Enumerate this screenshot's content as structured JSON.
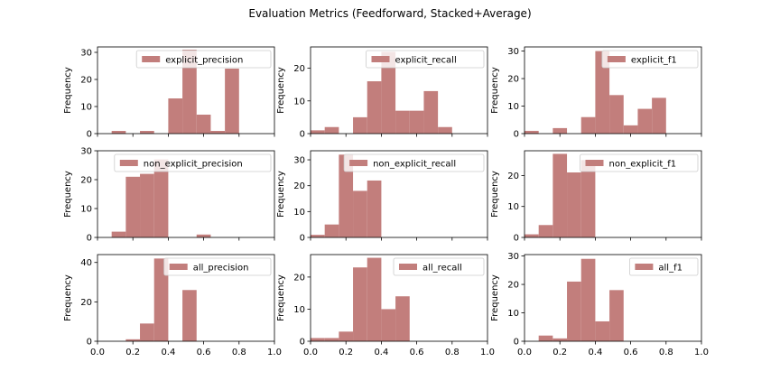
{
  "chart_data": {
    "type": "histogram-grid",
    "title": "Evaluation Metrics (Feedforward, Stacked+Average)",
    "bar_color": "#c27e7c",
    "panels": [
      {
        "legend": "explicit_precision",
        "ylabel": "Frequency",
        "xlim": [
          0,
          1
        ],
        "ylim": [
          0,
          32
        ],
        "yticks": [
          0,
          10,
          20,
          30
        ],
        "xticks": [
          0.0,
          0.2,
          0.4,
          0.6,
          0.8,
          1.0
        ],
        "show_xticklabels": false,
        "bins": [
          {
            "x0": 0.08,
            "x1": 0.16,
            "count": 1
          },
          {
            "x0": 0.16,
            "x1": 0.24,
            "count": 0
          },
          {
            "x0": 0.24,
            "x1": 0.32,
            "count": 1
          },
          {
            "x0": 0.32,
            "x1": 0.4,
            "count": 0
          },
          {
            "x0": 0.4,
            "x1": 0.48,
            "count": 13
          },
          {
            "x0": 0.48,
            "x1": 0.56,
            "count": 31
          },
          {
            "x0": 0.56,
            "x1": 0.64,
            "count": 7
          },
          {
            "x0": 0.64,
            "x1": 0.72,
            "count": 1
          },
          {
            "x0": 0.72,
            "x1": 0.8,
            "count": 24
          }
        ]
      },
      {
        "legend": "explicit_recall",
        "ylabel": "Frequency",
        "xlim": [
          0,
          1
        ],
        "ylim": [
          0,
          26.5
        ],
        "yticks": [
          0,
          10,
          20
        ],
        "xticks": [
          0.0,
          0.2,
          0.4,
          0.6,
          0.8,
          1.0
        ],
        "show_xticklabels": false,
        "bins": [
          {
            "x0": 0.0,
            "x1": 0.08,
            "count": 1
          },
          {
            "x0": 0.08,
            "x1": 0.16,
            "count": 2
          },
          {
            "x0": 0.16,
            "x1": 0.24,
            "count": 0
          },
          {
            "x0": 0.24,
            "x1": 0.32,
            "count": 5
          },
          {
            "x0": 0.32,
            "x1": 0.4,
            "count": 16
          },
          {
            "x0": 0.4,
            "x1": 0.48,
            "count": 25
          },
          {
            "x0": 0.48,
            "x1": 0.56,
            "count": 7
          },
          {
            "x0": 0.56,
            "x1": 0.64,
            "count": 7
          },
          {
            "x0": 0.64,
            "x1": 0.72,
            "count": 13
          },
          {
            "x0": 0.72,
            "x1": 0.8,
            "count": 2
          }
        ]
      },
      {
        "legend": "explicit_f1",
        "ylabel": "Frequency",
        "xlim": [
          0,
          1
        ],
        "ylim": [
          0,
          31.5
        ],
        "yticks": [
          0,
          10,
          20,
          30
        ],
        "xticks": [
          0.0,
          0.2,
          0.4,
          0.6,
          0.8,
          1.0
        ],
        "show_xticklabels": false,
        "bins": [
          {
            "x0": 0.0,
            "x1": 0.08,
            "count": 1
          },
          {
            "x0": 0.08,
            "x1": 0.16,
            "count": 0
          },
          {
            "x0": 0.16,
            "x1": 0.24,
            "count": 2
          },
          {
            "x0": 0.24,
            "x1": 0.32,
            "count": 0
          },
          {
            "x0": 0.32,
            "x1": 0.4,
            "count": 6
          },
          {
            "x0": 0.4,
            "x1": 0.48,
            "count": 30
          },
          {
            "x0": 0.48,
            "x1": 0.56,
            "count": 14
          },
          {
            "x0": 0.56,
            "x1": 0.64,
            "count": 3
          },
          {
            "x0": 0.64,
            "x1": 0.72,
            "count": 9
          },
          {
            "x0": 0.72,
            "x1": 0.8,
            "count": 13
          }
        ]
      },
      {
        "legend": "non_explicit_precision",
        "ylabel": "Frequency",
        "xlim": [
          0,
          1
        ],
        "ylim": [
          0,
          30
        ],
        "yticks": [
          0,
          10,
          20,
          30
        ],
        "xticks": [
          0.0,
          0.2,
          0.4,
          0.6,
          0.8,
          1.0
        ],
        "show_xticklabels": false,
        "bins": [
          {
            "x0": 0.08,
            "x1": 0.16,
            "count": 2
          },
          {
            "x0": 0.16,
            "x1": 0.24,
            "count": 21
          },
          {
            "x0": 0.24,
            "x1": 0.32,
            "count": 22
          },
          {
            "x0": 0.32,
            "x1": 0.4,
            "count": 27
          },
          {
            "x0": 0.4,
            "x1": 0.48,
            "count": 0
          },
          {
            "x0": 0.48,
            "x1": 0.56,
            "count": 0
          },
          {
            "x0": 0.56,
            "x1": 0.64,
            "count": 1
          }
        ]
      },
      {
        "legend": "non_explicit_recall",
        "ylabel": "Frequency",
        "xlim": [
          0,
          1
        ],
        "ylim": [
          0,
          33.5
        ],
        "yticks": [
          0,
          10,
          20,
          30
        ],
        "xticks": [
          0.0,
          0.2,
          0.4,
          0.6,
          0.8,
          1.0
        ],
        "show_xticklabels": false,
        "bins": [
          {
            "x0": 0.0,
            "x1": 0.08,
            "count": 1
          },
          {
            "x0": 0.08,
            "x1": 0.16,
            "count": 5
          },
          {
            "x0": 0.16,
            "x1": 0.24,
            "count": 32
          },
          {
            "x0": 0.24,
            "x1": 0.32,
            "count": 18
          },
          {
            "x0": 0.32,
            "x1": 0.4,
            "count": 22
          }
        ]
      },
      {
        "legend": "non_explicit_f1",
        "ylabel": "Frequency",
        "xlim": [
          0,
          1
        ],
        "ylim": [
          0,
          28
        ],
        "yticks": [
          0,
          10,
          20
        ],
        "xticks": [
          0.0,
          0.2,
          0.4,
          0.6,
          0.8,
          1.0
        ],
        "show_xticklabels": false,
        "bins": [
          {
            "x0": 0.0,
            "x1": 0.08,
            "count": 1
          },
          {
            "x0": 0.08,
            "x1": 0.16,
            "count": 4
          },
          {
            "x0": 0.16,
            "x1": 0.24,
            "count": 27
          },
          {
            "x0": 0.24,
            "x1": 0.32,
            "count": 21
          },
          {
            "x0": 0.32,
            "x1": 0.4,
            "count": 25
          }
        ]
      },
      {
        "legend": "all_precision",
        "ylabel": "Frequency",
        "xlim": [
          0,
          1
        ],
        "ylim": [
          0,
          44
        ],
        "yticks": [
          0,
          20,
          40
        ],
        "xticks": [
          0.0,
          0.2,
          0.4,
          0.6,
          0.8,
          1.0
        ],
        "show_xticklabels": true,
        "bins": [
          {
            "x0": 0.16,
            "x1": 0.24,
            "count": 1
          },
          {
            "x0": 0.24,
            "x1": 0.32,
            "count": 9
          },
          {
            "x0": 0.32,
            "x1": 0.4,
            "count": 42
          },
          {
            "x0": 0.4,
            "x1": 0.48,
            "count": 0
          },
          {
            "x0": 0.48,
            "x1": 0.56,
            "count": 26
          }
        ]
      },
      {
        "legend": "all_recall",
        "ylabel": "Frequency",
        "xlim": [
          0,
          1
        ],
        "ylim": [
          0,
          27
        ],
        "yticks": [
          0,
          10,
          20
        ],
        "xticks": [
          0.0,
          0.2,
          0.4,
          0.6,
          0.8,
          1.0
        ],
        "show_xticklabels": true,
        "bins": [
          {
            "x0": 0.0,
            "x1": 0.08,
            "count": 1
          },
          {
            "x0": 0.08,
            "x1": 0.16,
            "count": 1
          },
          {
            "x0": 0.16,
            "x1": 0.24,
            "count": 3
          },
          {
            "x0": 0.24,
            "x1": 0.32,
            "count": 23
          },
          {
            "x0": 0.32,
            "x1": 0.4,
            "count": 26
          },
          {
            "x0": 0.4,
            "x1": 0.48,
            "count": 10
          },
          {
            "x0": 0.48,
            "x1": 0.56,
            "count": 14
          }
        ]
      },
      {
        "legend": "all_f1",
        "ylabel": "Frequency",
        "xlim": [
          0,
          1
        ],
        "ylim": [
          0,
          30.5
        ],
        "yticks": [
          0,
          10,
          20,
          30
        ],
        "xticks": [
          0.0,
          0.2,
          0.4,
          0.6,
          0.8,
          1.0
        ],
        "show_xticklabels": true,
        "bins": [
          {
            "x0": 0.08,
            "x1": 0.16,
            "count": 2
          },
          {
            "x0": 0.16,
            "x1": 0.24,
            "count": 1
          },
          {
            "x0": 0.24,
            "x1": 0.32,
            "count": 21
          },
          {
            "x0": 0.32,
            "x1": 0.4,
            "count": 29
          },
          {
            "x0": 0.4,
            "x1": 0.48,
            "count": 7
          },
          {
            "x0": 0.48,
            "x1": 0.56,
            "count": 18
          }
        ]
      }
    ]
  }
}
